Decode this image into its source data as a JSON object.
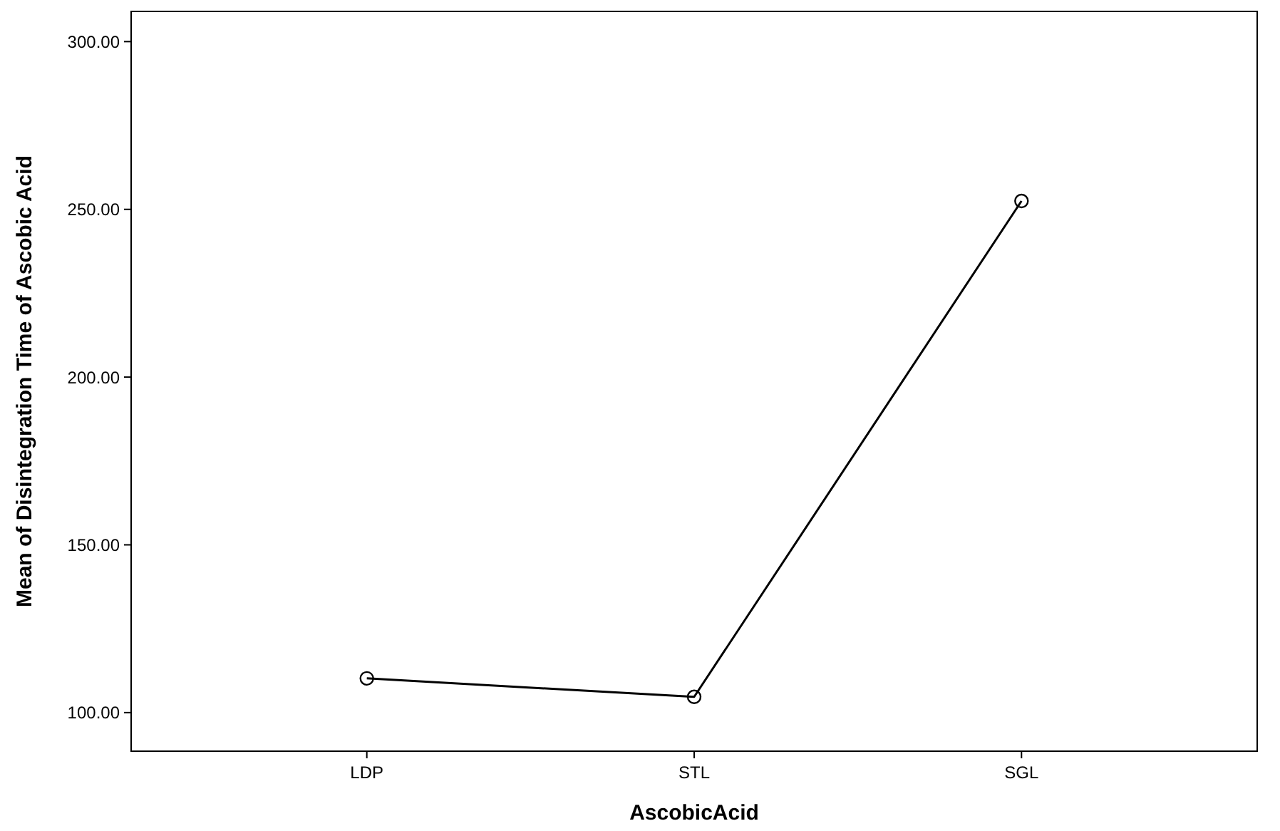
{
  "chart_data": {
    "type": "line",
    "xlabel": "AscobicAcid",
    "ylabel": "Mean of Disintegration Time of Ascobic Acid",
    "categories": [
      "LDP",
      "STL",
      "SGL"
    ],
    "series": [
      {
        "color": "#000000",
        "values": [
          110.2,
          104.7,
          252.5
        ]
      }
    ],
    "ylim": [
      88.5,
      309
    ],
    "yticks": [
      {
        "value": 100,
        "label": "100.00"
      },
      {
        "value": 150,
        "label": "150.00"
      },
      {
        "value": 200,
        "label": "200.00"
      },
      {
        "value": 250,
        "label": "250.00"
      },
      {
        "value": 300,
        "label": "300.00"
      }
    ],
    "grid": false,
    "marker": "circle",
    "line_style": "solid"
  }
}
